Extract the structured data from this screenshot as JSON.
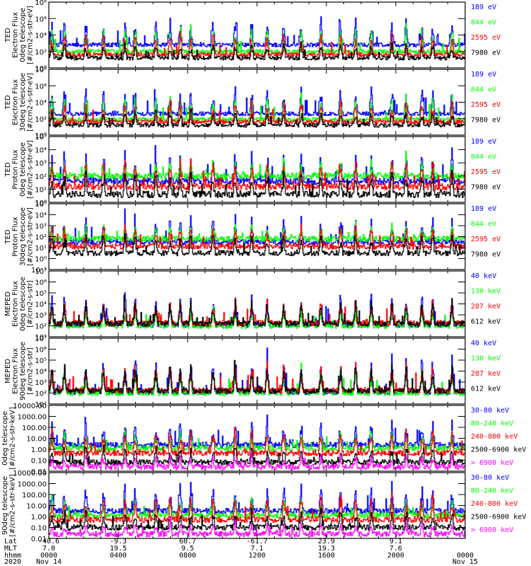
{
  "chart_data": {
    "type": "line",
    "title": "",
    "xlabel": "",
    "time_axis": {
      "row_labels": [
        "Lat",
        "MLT",
        "hhmm",
        "2020"
      ],
      "ticks": [
        {
          "lat": "-40.6",
          "mlt": "7.0",
          "hhmm": "0000",
          "date": "Nov 14"
        },
        {
          "lat": "-9.3",
          "mlt": "19.5",
          "hhmm": "0400",
          "date": ""
        },
        {
          "lat": "60.7",
          "mlt": "9.5",
          "hhmm": "0800",
          "date": ""
        },
        {
          "lat": "-61.7",
          "mlt": "7.1",
          "hhmm": "1200",
          "date": ""
        },
        {
          "lat": "23.9",
          "mlt": "19.3",
          "hhmm": "1600",
          "date": ""
        },
        {
          "lat": "9.1",
          "mlt": "7.6",
          "hhmm": "2000",
          "date": ""
        },
        {
          "lat": "",
          "mlt": "",
          "hhmm": "0000",
          "date": "Nov 15"
        }
      ],
      "xlim_hours": [
        0,
        24
      ]
    },
    "panels": [
      {
        "id": "ted-electron-0deg",
        "ylabel": [
          "TED",
          "Electron Flux",
          "0deg telescope",
          "[#/cm2-s-str-eV]"
        ],
        "yscale": "log",
        "ylim": [
          1,
          100000000
        ],
        "yticks": [
          {
            "v": 1,
            "label": "10⁰"
          },
          {
            "v": 100,
            "label": "10²"
          },
          {
            "v": 10000,
            "label": "10⁴"
          },
          {
            "v": 1000000,
            "label": "10⁶"
          },
          {
            "v": 100000000,
            "label": "10⁸"
          }
        ],
        "series": [
          {
            "name": "7980 eV",
            "color": "#000000",
            "base": 1.2,
            "amp": 1.6
          },
          {
            "name": "2595 eV",
            "color": "#ff0000",
            "base": 1.6,
            "amp": 2.4
          },
          {
            "name": "844 eV",
            "color": "#00ff00",
            "base": 2.0,
            "amp": 2.8
          },
          {
            "name": "189 eV",
            "color": "#0000ff",
            "base": 2.8,
            "amp": 3.0
          }
        ]
      },
      {
        "id": "ted-electron-30deg",
        "ylabel": [
          "TED",
          "Electron Flux",
          "30deg telescope",
          "[#/cm2-s-str-eV]"
        ],
        "yscale": "log",
        "ylim": [
          1,
          100000000
        ],
        "yticks": [
          {
            "v": 1,
            "label": "10⁰"
          },
          {
            "v": 100,
            "label": "10²"
          },
          {
            "v": 10000,
            "label": "10⁴"
          },
          {
            "v": 1000000,
            "label": "10⁶"
          },
          {
            "v": 100000000,
            "label": "10⁸"
          }
        ],
        "series": [
          {
            "name": "7980 eV",
            "color": "#000000",
            "base": 1.2,
            "amp": 1.6
          },
          {
            "name": "2595 eV",
            "color": "#ff0000",
            "base": 1.6,
            "amp": 2.4
          },
          {
            "name": "844 eV",
            "color": "#00ff00",
            "base": 1.9,
            "amp": 2.8
          },
          {
            "name": "189 eV",
            "color": "#0000ff",
            "base": 2.6,
            "amp": 3.0
          }
        ]
      },
      {
        "id": "ted-proton-0deg",
        "ylabel": [
          "TED",
          "Proton Flux",
          "0deg telescope",
          "[#/cm2-s-str-eV]"
        ],
        "yscale": "log",
        "ylim": [
          1,
          100000
        ],
        "yticks": [
          {
            "v": 1,
            "label": "10⁰"
          },
          {
            "v": 10,
            "label": "10¹"
          },
          {
            "v": 100,
            "label": "10²"
          },
          {
            "v": 1000,
            "label": "10³"
          },
          {
            "v": 10000,
            "label": "10⁴"
          },
          {
            "v": 100000,
            "label": "10⁵"
          }
        ],
        "series": [
          {
            "name": "7980 eV",
            "color": "#000000",
            "base": 0.6,
            "amp": 1.6
          },
          {
            "name": "2595 eV",
            "color": "#ff0000",
            "base": 1.2,
            "amp": 1.8
          },
          {
            "name": "844 eV",
            "color": "#00ff00",
            "base": 2.0,
            "amp": 1.2
          },
          {
            "name": "189 eV",
            "color": "#0000ff",
            "base": 1.6,
            "amp": 2.2
          }
        ]
      },
      {
        "id": "ted-proton-30deg",
        "ylabel": [
          "TED",
          "Proton Flux",
          "30deg telescope",
          "[#/cm2-s-str-eV]"
        ],
        "yscale": "log",
        "ylim": [
          0.1,
          100000
        ],
        "yticks": [
          {
            "v": 0.1,
            "label": "10⁻¹"
          },
          {
            "v": 1,
            "label": "10⁰"
          },
          {
            "v": 10,
            "label": "10¹"
          },
          {
            "v": 100,
            "label": "10²"
          },
          {
            "v": 1000,
            "label": "10³"
          },
          {
            "v": 10000,
            "label": "10⁴"
          },
          {
            "v": 100000,
            "label": "10⁵"
          }
        ],
        "series": [
          {
            "name": "7980 eV",
            "color": "#000000",
            "base": 0.5,
            "amp": 1.6
          },
          {
            "name": "2595 eV",
            "color": "#ff0000",
            "base": 1.1,
            "amp": 1.8
          },
          {
            "name": "844 eV",
            "color": "#00ff00",
            "base": 1.8,
            "amp": 1.2
          },
          {
            "name": "189 eV",
            "color": "#0000ff",
            "base": 1.5,
            "amp": 2.2
          }
        ]
      },
      {
        "id": "meped-electron-0deg",
        "ylabel": [
          "MEPED",
          "Electron Flux",
          "0deg telescope",
          "[#/cm2-s-str]"
        ],
        "yscale": "log",
        "ylim": [
          10,
          10000000
        ],
        "yticks": [
          {
            "v": 10,
            "label": "10¹"
          },
          {
            "v": 100,
            "label": "10²"
          },
          {
            "v": 1000,
            "label": "10³"
          },
          {
            "v": 10000,
            "label": "10⁴"
          },
          {
            "v": 100000,
            "label": "10⁵"
          },
          {
            "v": 1000000,
            "label": "10⁶"
          },
          {
            "v": 10000000,
            "label": "10⁷"
          }
        ],
        "series": [
          {
            "name": "612 keV",
            "color": "#000000",
            "base": 2.2,
            "amp": 2.0
          },
          {
            "name": "287 keV",
            "color": "#ff0000",
            "base": 2.25,
            "amp": 2.1
          },
          {
            "name": "130 keV",
            "color": "#00ff00",
            "base": 2.0,
            "amp": 1.4
          },
          {
            "name": "40 keV",
            "color": "#0000ff",
            "base": 2.1,
            "amp": 2.6
          }
        ]
      },
      {
        "id": "meped-electron-90deg",
        "ylabel": [
          "MEPED",
          "Electron Flux",
          "90deg telescope",
          "[#/cm2-s-str]"
        ],
        "yscale": "log",
        "ylim": [
          10,
          10000000
        ],
        "yticks": [
          {
            "v": 10,
            "label": "10¹"
          },
          {
            "v": 100,
            "label": "10²"
          },
          {
            "v": 1000,
            "label": "10³"
          },
          {
            "v": 10000,
            "label": "10⁴"
          },
          {
            "v": 100000,
            "label": "10⁵"
          },
          {
            "v": 1000000,
            "label": "10⁶"
          },
          {
            "v": 10000000,
            "label": "10⁷"
          }
        ],
        "series": [
          {
            "name": "612 keV",
            "color": "#000000",
            "base": 2.2,
            "amp": 2.2
          },
          {
            "name": "287 keV",
            "color": "#ff0000",
            "base": 2.25,
            "amp": 2.4
          },
          {
            "name": "130 keV",
            "color": "#00ff00",
            "base": 2.0,
            "amp": 2.2
          },
          {
            "name": "40 keV",
            "color": "#0000ff",
            "base": 2.1,
            "amp": 2.8
          }
        ]
      },
      {
        "id": "meped-proton-0deg",
        "ylabel": [
          "0deg telescope",
          "[#/cm2-s-str-keV]"
        ],
        "yscale": "log",
        "ylim": [
          0.01,
          10000
        ],
        "yticks": [
          {
            "v": 0.01,
            "label": "0.01"
          },
          {
            "v": 0.1,
            "label": "0.10"
          },
          {
            "v": 1,
            "label": "1.00"
          },
          {
            "v": 10,
            "label": "10.00"
          },
          {
            "v": 100,
            "label": "100.00"
          },
          {
            "v": 1000,
            "label": "1000.00"
          },
          {
            "v": 10000,
            "label": "10000.00"
          }
        ],
        "series": [
          {
            "name": "> 6900 keV",
            "color": "#ff00ff",
            "base": -1.6,
            "amp": 1.0
          },
          {
            "name": "2500-6900 keV",
            "color": "#000000",
            "base": -1.2,
            "amp": 1.4
          },
          {
            "name": "240-800 keV",
            "color": "#ff0000",
            "base": -0.35,
            "amp": 2.0
          },
          {
            "name": "80-240 keV",
            "color": "#00ff00",
            "base": 0.1,
            "amp": 1.4
          },
          {
            "name": "30-80 keV",
            "color": "#0000ff",
            "base": 0.4,
            "amp": 2.2
          }
        ]
      },
      {
        "id": "meped-proton-90deg",
        "ylabel": [
          "90deg telescope",
          "[#/cm2-s-str-keV]"
        ],
        "yscale": "log",
        "ylim": [
          0.01,
          10000
        ],
        "yticks": [
          {
            "v": 0.01,
            "label": "0.01"
          },
          {
            "v": 0.1,
            "label": "0.10"
          },
          {
            "v": 1,
            "label": "1.00"
          },
          {
            "v": 10,
            "label": "10.00"
          },
          {
            "v": 100,
            "label": "100.00"
          },
          {
            "v": 1000,
            "label": "1000.00"
          },
          {
            "v": 10000,
            "label": "10000.00"
          }
        ],
        "series": [
          {
            "name": "> 6900 keV",
            "color": "#ff00ff",
            "base": -1.6,
            "amp": 1.0
          },
          {
            "name": "2500-6900 keV",
            "color": "#000000",
            "base": -1.0,
            "amp": 1.4
          },
          {
            "name": "240-800 keV",
            "color": "#ff0000",
            "base": -0.3,
            "amp": 2.0
          },
          {
            "name": "80-240 keV",
            "color": "#00ff00",
            "base": 0.1,
            "amp": 1.4
          },
          {
            "name": "30-80 keV",
            "color": "#0000ff",
            "base": 0.5,
            "amp": 2.2
          }
        ]
      }
    ]
  }
}
